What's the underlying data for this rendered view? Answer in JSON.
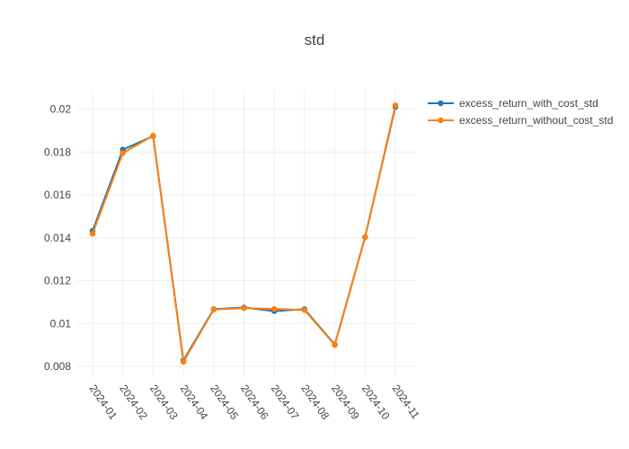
{
  "chart_data": {
    "type": "line",
    "title": "std",
    "xlabel": "",
    "ylabel": "",
    "categories": [
      "2024-01",
      "2024-02",
      "2024-03",
      "2024-04",
      "2024-05",
      "2024-06",
      "2024-07",
      "2024-08",
      "2024-09",
      "2024-10",
      "2024-11"
    ],
    "ylim": [
      0.0075,
      0.0209
    ],
    "yticks": [
      0.008,
      0.01,
      0.012,
      0.014,
      0.016,
      0.018,
      0.02
    ],
    "ytick_labels": [
      "0.008",
      "0.01",
      "0.012",
      "0.014",
      "0.016",
      "0.018",
      "0.02"
    ],
    "grid": true,
    "legend_position": "top-right",
    "series": [
      {
        "name": "excess_return_with_cost_std",
        "color": "#1f77b4",
        "values": [
          0.01432,
          0.01811,
          0.01874,
          0.00828,
          0.01067,
          0.01075,
          0.01058,
          0.01067,
          0.00902,
          0.01403,
          0.0201
        ]
      },
      {
        "name": "excess_return_without_cost_std",
        "color": "#ff7f0e",
        "values": [
          0.01419,
          0.01795,
          0.01876,
          0.00821,
          0.01065,
          0.01072,
          0.01068,
          0.01063,
          0.009,
          0.01402,
          0.02017
        ]
      }
    ]
  }
}
